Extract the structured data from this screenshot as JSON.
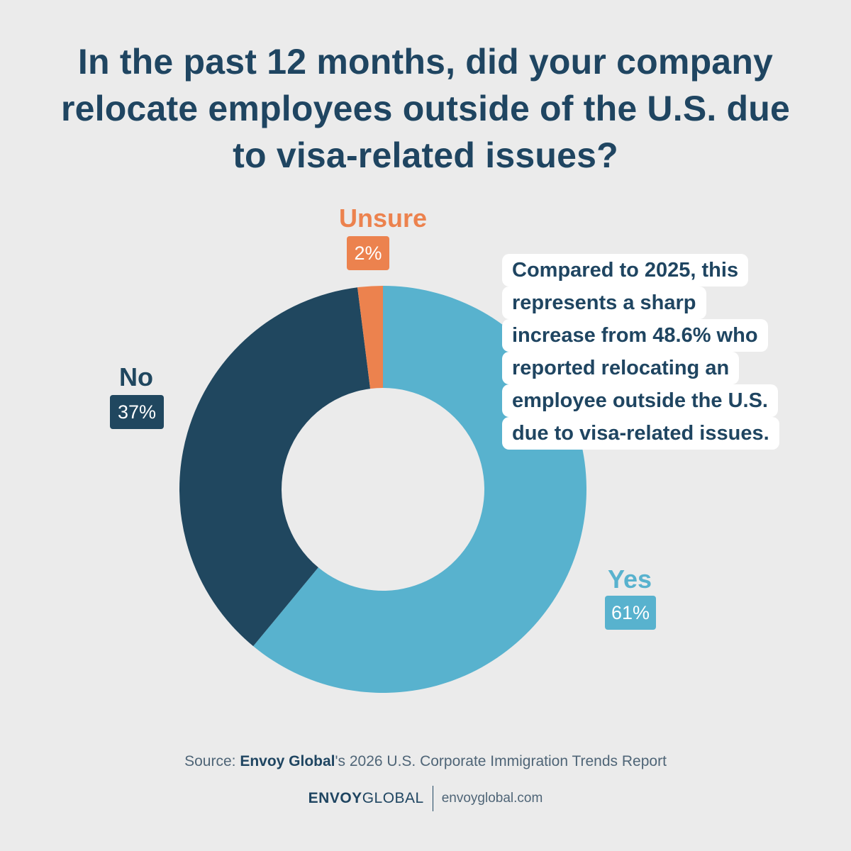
{
  "header": {
    "title": "In the past 12 months, did your company relocate employees outside of the U.S. due to visa-related issues?"
  },
  "chart_data": {
    "type": "pie",
    "style": "donut",
    "categories": [
      "Yes",
      "No",
      "Unsure"
    ],
    "values": [
      61,
      37,
      2
    ],
    "value_labels": [
      "61%",
      "37%",
      "2%"
    ],
    "colors": [
      "#58b2ce",
      "#20475f",
      "#ec824e"
    ],
    "start": "12 o'clock, clockwise"
  },
  "callout": {
    "lines": [
      "Compared to 2025, this",
      "represents a sharp",
      "increase from 48.6% who",
      "reported relocating an",
      "employee outside the U.S.",
      "due to visa-related issues."
    ]
  },
  "footer": {
    "source_prefix": "Source: ",
    "source_brand": "Envoy Global",
    "source_rest": "'s 2026 U.S. Corporate Immigration Trends Report",
    "logo_part1": "ENVOY",
    "logo_part2": "GLOBAL",
    "website": "envoyglobal.com"
  },
  "colors": {
    "background": "#ebebeb",
    "title": "#1f4561",
    "text_muted": "#4f6577"
  }
}
